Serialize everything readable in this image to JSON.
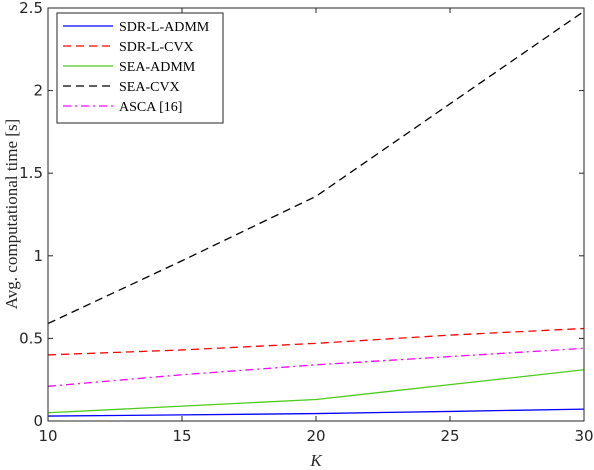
{
  "chart_data": {
    "type": "line",
    "xlabel": "K",
    "ylabel": "Avg. computational time [s]",
    "xlim": [
      10,
      30
    ],
    "ylim": [
      0,
      2.5
    ],
    "xticks": [
      10,
      15,
      20,
      25,
      30
    ],
    "yticks": [
      0,
      0.5,
      1,
      1.5,
      2,
      2.5
    ],
    "xtick_labels": [
      "10",
      "15",
      "20",
      "25",
      "30"
    ],
    "ytick_labels": [
      "0",
      "0.5",
      "1",
      "1.5",
      "2",
      "2.5"
    ],
    "grid": false,
    "legend_position": "top-left",
    "x": [
      10,
      15,
      20,
      25,
      30
    ],
    "series": [
      {
        "name": "SDR-L-ADMM",
        "color": "#0000ff",
        "dash": "solid",
        "values": [
          0.03,
          0.037,
          0.045,
          0.058,
          0.072
        ]
      },
      {
        "name": "SDR-L-CVX",
        "color": "#ff0000",
        "dash": "dashed",
        "values": [
          0.4,
          0.43,
          0.47,
          0.52,
          0.56
        ]
      },
      {
        "name": "SEA-ADMM",
        "color": "#4ccc1a",
        "dash": "solid",
        "values": [
          0.05,
          0.09,
          0.13,
          0.22,
          0.31
        ]
      },
      {
        "name": "SEA-CVX",
        "color": "#000000",
        "dash": "dashed",
        "values": [
          0.59,
          0.97,
          1.36,
          1.92,
          2.48
        ]
      },
      {
        "name": "ASCA [16]",
        "color": "#ff00ff",
        "dash": "dashdot",
        "values": [
          0.21,
          0.28,
          0.34,
          0.39,
          0.44
        ]
      }
    ]
  }
}
